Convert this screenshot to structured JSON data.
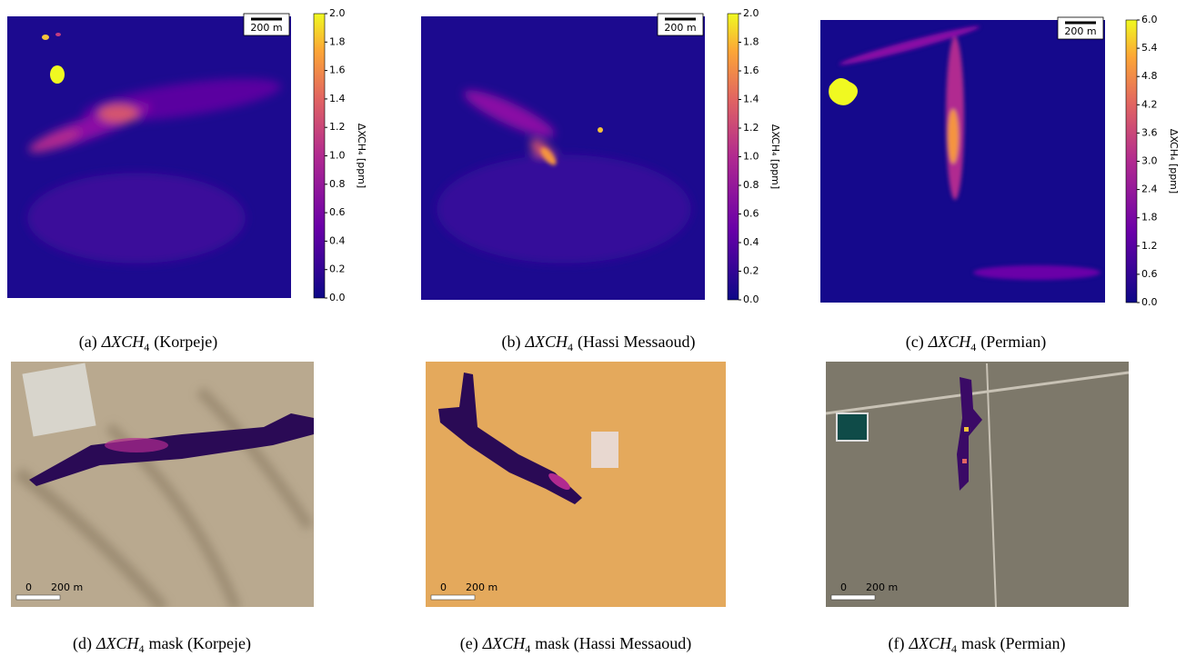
{
  "panels": [
    {
      "caption": {
        "prefix": "(a)",
        "symbol": "ΔXCH",
        "sub": "4",
        "suffix": "(Korpeje)"
      },
      "scale_bar": "200 m",
      "colorbar": {
        "label": "ΔXCH₄ [ppm]",
        "lim": [
          0,
          2
        ],
        "ticks": [
          {
            "value": 0,
            "label": "0.0"
          },
          0.2,
          0.4,
          0.6,
          0.8,
          {
            "value": 1,
            "label": "1.0"
          },
          1.2,
          1.4,
          1.6,
          1.8,
          {
            "value": 2,
            "label": "2.0"
          }
        ]
      }
    },
    {
      "caption": {
        "prefix": "(b)",
        "symbol": "ΔXCH",
        "sub": "4",
        "suffix": "(Hassi Messaoud)"
      },
      "scale_bar": "200 m",
      "colorbar": {
        "label": "ΔXCH₄ [ppm]",
        "lim": [
          0,
          2
        ],
        "ticks": [
          {
            "value": 0,
            "label": "0.0"
          },
          0.2,
          0.4,
          0.6,
          0.8,
          {
            "value": 1,
            "label": "1.0"
          },
          1.2,
          1.4,
          1.6,
          1.8,
          {
            "value": 2,
            "label": "2.0"
          }
        ]
      }
    },
    {
      "caption": {
        "prefix": "(c)",
        "symbol": "ΔXCH",
        "sub": "4",
        "suffix": "(Permian)"
      },
      "scale_bar": "200 m",
      "colorbar": {
        "label": "ΔXCH₄ [ppm]",
        "lim": [
          0,
          6
        ],
        "ticks": [
          {
            "value": 0,
            "label": "0.0"
          },
          0.6,
          1.2,
          1.8,
          2.4,
          {
            "value": 3,
            "label": "3.0"
          },
          3.6,
          4.2,
          4.8,
          5.4,
          {
            "value": 6,
            "label": "6.0"
          }
        ]
      }
    },
    {
      "caption": {
        "prefix": "(d)",
        "symbol": "ΔXCH",
        "sub": "4",
        "suffix": "mask (Korpeje)"
      },
      "scale_bar": {
        "start": "0",
        "length": "200 m"
      }
    },
    {
      "caption": {
        "prefix": "(e)",
        "symbol": "ΔXCH",
        "sub": "4",
        "suffix": "mask (Hassi Messaoud)"
      },
      "scale_bar": {
        "start": "0",
        "length": "200 m"
      }
    },
    {
      "caption": {
        "prefix": "(f)",
        "symbol": "ΔXCH",
        "sub": "4",
        "suffix": "mask (Permian)"
      },
      "scale_bar": {
        "start": "0",
        "length": "200 m"
      }
    }
  ]
}
